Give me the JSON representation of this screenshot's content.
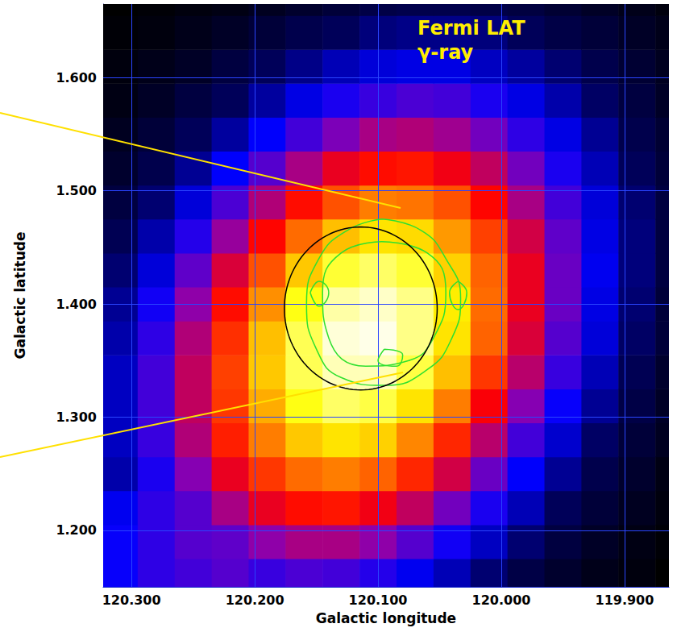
{
  "chart_data": {
    "type": "heatmap",
    "title": "Fermi LAT",
    "subtitle": "γ-ray",
    "xlabel": "Galactic longitude",
    "ylabel": "Galactic latitude",
    "xlim": [
      120.323,
      119.864
    ],
    "ylim": [
      1.15,
      1.665
    ],
    "xticks": [
      {
        "value": 120.3,
        "label": "120.300"
      },
      {
        "value": 120.2,
        "label": "120.200"
      },
      {
        "value": 120.1,
        "label": "120.100"
      },
      {
        "value": 120.0,
        "label": "120.000"
      },
      {
        "value": 119.9,
        "label": "119.900"
      }
    ],
    "yticks": [
      {
        "value": 1.2,
        "label": "1.200"
      },
      {
        "value": 1.3,
        "label": "1.300"
      },
      {
        "value": 1.4,
        "label": "1.400"
      },
      {
        "value": 1.5,
        "label": "1.500"
      },
      {
        "value": 1.6,
        "label": "1.600"
      }
    ],
    "grid": true,
    "x": [
      120.31,
      120.28,
      120.25,
      120.22,
      120.19,
      120.16,
      120.13,
      120.1,
      120.07,
      120.04,
      120.01,
      119.98,
      119.95,
      119.92,
      119.89,
      119.86
    ],
    "y": [
      1.16,
      1.19,
      1.22,
      1.25,
      1.28,
      1.31,
      1.34,
      1.37,
      1.4,
      1.43,
      1.46,
      1.49,
      1.52,
      1.55,
      1.58,
      1.61,
      1.64,
      1.67
    ],
    "cells": [
      [
        30,
        34,
        36,
        38,
        35,
        37,
        36,
        33,
        28,
        23,
        17,
        12,
        8,
        5,
        3,
        1
      ],
      [
        30,
        34,
        38,
        39,
        44,
        47,
        47,
        44,
        38,
        31,
        24,
        17,
        11,
        7,
        4,
        2
      ],
      [
        28,
        34,
        38,
        47,
        55,
        59,
        60,
        56,
        50,
        41,
        32,
        23,
        15,
        10,
        6,
        3
      ],
      [
        22,
        32,
        43,
        55,
        64,
        70,
        72,
        69,
        62,
        52,
        40,
        29,
        20,
        13,
        8,
        4
      ],
      [
        24,
        35,
        48,
        61,
        72,
        80,
        83,
        81,
        73,
        62,
        49,
        36,
        25,
        16,
        10,
        6
      ],
      [
        24,
        36,
        50,
        64,
        77,
        87,
        92,
        90,
        83,
        72,
        57,
        43,
        30,
        20,
        12,
        7
      ],
      [
        24,
        36,
        50,
        65,
        80,
        91,
        97,
        97,
        90,
        79,
        64,
        49,
        35,
        23,
        14,
        8
      ],
      [
        22,
        34,
        48,
        63,
        79,
        91,
        99,
        100,
        94,
        83,
        69,
        53,
        38,
        26,
        16,
        10
      ],
      [
        20,
        31,
        44,
        59,
        74,
        87,
        96,
        98,
        94,
        84,
        70,
        55,
        40,
        27,
        17,
        10
      ],
      [
        17,
        26,
        39,
        53,
        67,
        80,
        89,
        92,
        89,
        81,
        69,
        55,
        40,
        28,
        18,
        11
      ],
      [
        14,
        22,
        33,
        45,
        58,
        70,
        79,
        83,
        82,
        75,
        65,
        52,
        39,
        27,
        18,
        11
      ],
      [
        11,
        17,
        26,
        37,
        48,
        59,
        67,
        72,
        71,
        67,
        58,
        47,
        36,
        26,
        17,
        11
      ],
      [
        8,
        13,
        20,
        29,
        38,
        47,
        55,
        59,
        60,
        56,
        50,
        41,
        32,
        23,
        15,
        10
      ],
      [
        6,
        10,
        15,
        21,
        29,
        36,
        42,
        47,
        48,
        46,
        41,
        34,
        27,
        20,
        13,
        9
      ],
      [
        4,
        7,
        11,
        15,
        21,
        27,
        32,
        35,
        37,
        36,
        32,
        27,
        22,
        16,
        11,
        7
      ],
      [
        3,
        5,
        7,
        11,
        15,
        19,
        23,
        26,
        27,
        27,
        24,
        21,
        17,
        13,
        9,
        6
      ],
      [
        2,
        3,
        5,
        7,
        10,
        13,
        15,
        18,
        19,
        19,
        18,
        15,
        12,
        10,
        7,
        5
      ],
      [
        1,
        2,
        3,
        4,
        6,
        8,
        10,
        12,
        13,
        13,
        12,
        11,
        9,
        7,
        5,
        3
      ]
    ],
    "contours": [
      [
        [
          120.097,
          1.475
        ],
        [
          120.065,
          1.465
        ],
        [
          120.045,
          1.44
        ],
        [
          120.033,
          1.405
        ],
        [
          120.04,
          1.37
        ],
        [
          120.06,
          1.342
        ],
        [
          120.095,
          1.328
        ],
        [
          120.13,
          1.335
        ],
        [
          120.15,
          1.36
        ],
        [
          120.158,
          1.4
        ],
        [
          120.148,
          1.44
        ],
        [
          120.125,
          1.465
        ],
        [
          120.097,
          1.475
        ]
      ],
      [
        [
          120.097,
          1.455
        ],
        [
          120.06,
          1.445
        ],
        [
          120.045,
          1.41
        ],
        [
          120.055,
          1.37
        ],
        [
          120.075,
          1.35
        ],
        [
          120.11,
          1.345
        ],
        [
          120.14,
          1.37
        ],
        [
          120.145,
          1.41
        ],
        [
          120.13,
          1.445
        ],
        [
          120.097,
          1.455
        ]
      ],
      [
        [
          120.155,
          1.41
        ],
        [
          120.148,
          1.42
        ],
        [
          120.14,
          1.41
        ],
        [
          120.148,
          1.398
        ],
        [
          120.155,
          1.41
        ]
      ],
      [
        [
          120.035,
          1.42
        ],
        [
          120.028,
          1.41
        ],
        [
          120.035,
          1.395
        ],
        [
          120.042,
          1.41
        ],
        [
          120.035,
          1.42
        ]
      ],
      [
        [
          120.095,
          1.36
        ],
        [
          120.08,
          1.355
        ],
        [
          120.085,
          1.345
        ],
        [
          120.1,
          1.35
        ],
        [
          120.095,
          1.36
        ]
      ]
    ],
    "ellipse": {
      "center": [
        120.114,
        1.396
      ],
      "radii": [
        0.062,
        0.072
      ]
    }
  }
}
